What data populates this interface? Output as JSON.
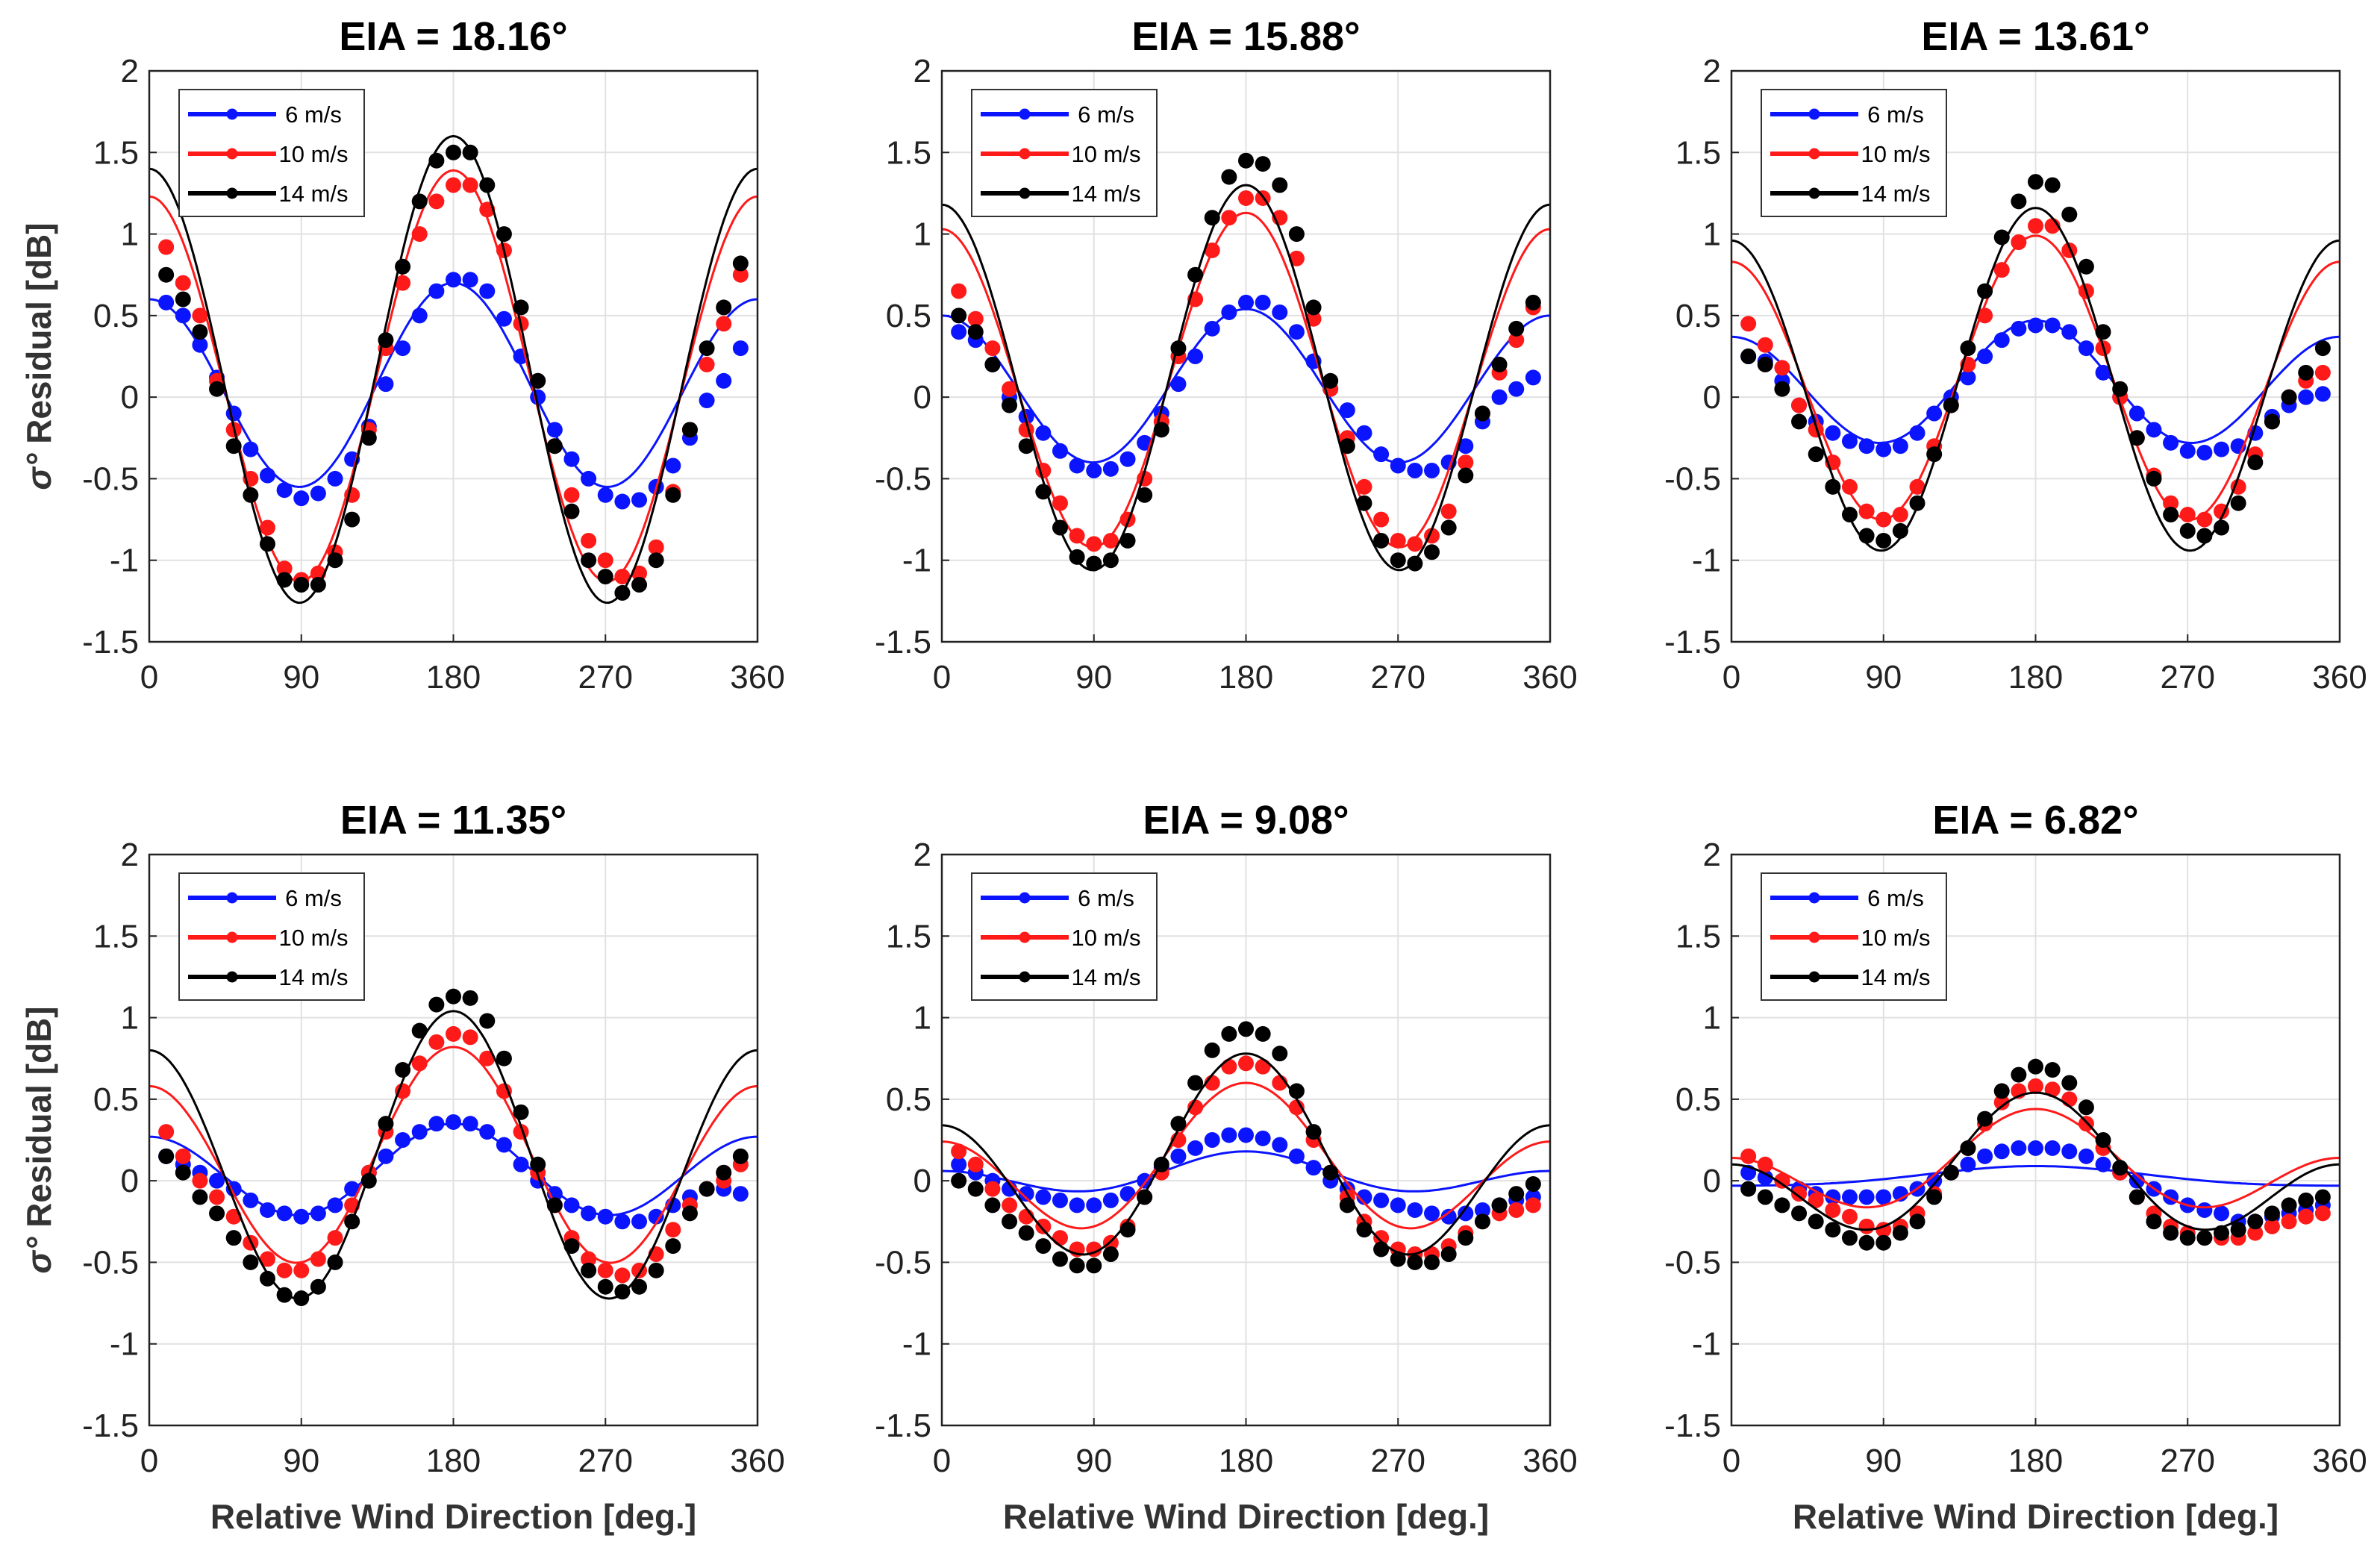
{
  "chart_data": {
    "type": "line",
    "layout": "2x3 grid",
    "ylabel_symbol": "σ°",
    "ylabel": "Residual [dB]",
    "xlabel": "Relative Wind Direction [deg.]",
    "xlim": [
      0,
      360
    ],
    "ylim": [
      -1.5,
      2
    ],
    "xticks": [
      0,
      90,
      180,
      270,
      360
    ],
    "yticks": [
      2,
      1.5,
      1,
      0.5,
      0,
      -0.5,
      -1,
      -1.5
    ],
    "grid": true,
    "legend_position": "top-left",
    "series_styles": [
      {
        "name": "6 m/s",
        "color": "#0a14ff"
      },
      {
        "name": "10 m/s",
        "color": "#ff1a1a"
      },
      {
        "name": "14 m/s",
        "color": "#000000"
      }
    ],
    "marker_x": [
      10,
      20,
      30,
      40,
      50,
      60,
      70,
      80,
      90,
      100,
      110,
      120,
      130,
      140,
      150,
      160,
      170,
      180,
      190,
      200,
      210,
      220,
      230,
      240,
      250,
      260,
      270,
      280,
      290,
      300,
      310,
      320,
      330,
      340,
      350
    ],
    "panels": [
      {
        "title": "EIA = 18.16°",
        "series": [
          {
            "name": "6 m/s",
            "fit": {
              "a0": 0.05,
              "a1": -0.05,
              "a2": 0.6
            },
            "points": [
              0.58,
              0.5,
              0.32,
              0.12,
              -0.1,
              -0.32,
              -0.48,
              -0.57,
              -0.62,
              -0.59,
              -0.5,
              -0.38,
              -0.18,
              0.08,
              0.3,
              0.5,
              0.65,
              0.72,
              0.72,
              0.65,
              0.48,
              0.25,
              0.0,
              -0.2,
              -0.38,
              -0.5,
              -0.6,
              -0.64,
              -0.63,
              -0.55,
              -0.42,
              -0.25,
              -0.02,
              0.1,
              0.3
            ]
          },
          {
            "name": "10 m/s",
            "fit": {
              "a0": 0.09,
              "a1": -0.08,
              "a2": 1.22
            },
            "points": [
              0.92,
              0.7,
              0.5,
              0.1,
              -0.2,
              -0.5,
              -0.8,
              -1.05,
              -1.12,
              -1.08,
              -0.95,
              -0.6,
              -0.2,
              0.3,
              0.7,
              1.0,
              1.2,
              1.3,
              1.3,
              1.15,
              0.9,
              0.45,
              0.1,
              -0.3,
              -0.6,
              -0.88,
              -1.0,
              -1.1,
              -1.08,
              -0.92,
              -0.58,
              -0.2,
              0.2,
              0.45,
              0.75
            ]
          },
          {
            "name": "14 m/s",
            "fit": {
              "a0": 0.12,
              "a1": -0.1,
              "a2": 1.38
            },
            "points": [
              0.75,
              0.6,
              0.4,
              0.05,
              -0.3,
              -0.6,
              -0.9,
              -1.12,
              -1.15,
              -1.15,
              -1.0,
              -0.75,
              -0.25,
              0.35,
              0.8,
              1.2,
              1.45,
              1.5,
              1.5,
              1.3,
              1.0,
              0.55,
              0.1,
              -0.3,
              -0.7,
              -1.0,
              -1.1,
              -1.2,
              -1.15,
              -1.0,
              -0.6,
              -0.2,
              0.3,
              0.55,
              0.82
            ]
          }
        ]
      },
      {
        "title": "EIA = 15.88°",
        "series": [
          {
            "name": "6 m/s",
            "fit": {
              "a0": 0.06,
              "a1": -0.02,
              "a2": 0.46
            },
            "points": [
              0.4,
              0.35,
              0.2,
              0.0,
              -0.12,
              -0.22,
              -0.33,
              -0.42,
              -0.45,
              -0.44,
              -0.38,
              -0.28,
              -0.1,
              0.08,
              0.25,
              0.42,
              0.52,
              0.58,
              0.58,
              0.52,
              0.4,
              0.22,
              0.05,
              -0.08,
              -0.22,
              -0.35,
              -0.42,
              -0.45,
              -0.45,
              -0.4,
              -0.3,
              -0.15,
              0.0,
              0.05,
              0.12
            ]
          },
          {
            "name": "10 m/s",
            "fit": {
              "a0": 0.08,
              "a1": -0.05,
              "a2": 1.0
            },
            "points": [
              0.65,
              0.48,
              0.3,
              0.05,
              -0.2,
              -0.45,
              -0.65,
              -0.85,
              -0.9,
              -0.88,
              -0.75,
              -0.5,
              -0.15,
              0.25,
              0.6,
              0.9,
              1.1,
              1.22,
              1.22,
              1.1,
              0.85,
              0.48,
              0.05,
              -0.25,
              -0.55,
              -0.75,
              -0.88,
              -0.9,
              -0.85,
              -0.7,
              -0.4,
              -0.1,
              0.15,
              0.35,
              0.55
            ]
          },
          {
            "name": "14 m/s",
            "fit": {
              "a0": 0.09,
              "a1": -0.06,
              "a2": 1.15
            },
            "points": [
              0.5,
              0.4,
              0.2,
              -0.05,
              -0.3,
              -0.58,
              -0.8,
              -0.98,
              -1.02,
              -1.0,
              -0.88,
              -0.6,
              -0.2,
              0.3,
              0.75,
              1.1,
              1.35,
              1.45,
              1.43,
              1.3,
              1.0,
              0.55,
              0.1,
              -0.3,
              -0.65,
              -0.88,
              -1.0,
              -1.02,
              -0.95,
              -0.8,
              -0.48,
              -0.1,
              0.2,
              0.42,
              0.58
            ]
          }
        ]
      },
      {
        "title": "EIA = 13.61°",
        "series": [
          {
            "name": "6 m/s",
            "fit": {
              "a0": 0.07,
              "a1": -0.05,
              "a2": 0.35
            },
            "points": [
              0.25,
              0.22,
              0.1,
              -0.05,
              -0.15,
              -0.22,
              -0.27,
              -0.3,
              -0.32,
              -0.3,
              -0.22,
              -0.1,
              0.0,
              0.12,
              0.25,
              0.35,
              0.42,
              0.44,
              0.44,
              0.4,
              0.3,
              0.15,
              0.0,
              -0.1,
              -0.2,
              -0.28,
              -0.33,
              -0.34,
              -0.32,
              -0.3,
              -0.22,
              -0.12,
              -0.05,
              0.0,
              0.02
            ]
          },
          {
            "name": "10 m/s",
            "fit": {
              "a0": 0.08,
              "a1": -0.08,
              "a2": 0.83
            },
            "points": [
              0.45,
              0.32,
              0.18,
              -0.05,
              -0.2,
              -0.4,
              -0.55,
              -0.7,
              -0.75,
              -0.72,
              -0.55,
              -0.3,
              -0.05,
              0.2,
              0.5,
              0.78,
              0.95,
              1.05,
              1.05,
              0.9,
              0.65,
              0.3,
              0.0,
              -0.25,
              -0.48,
              -0.65,
              -0.72,
              -0.75,
              -0.7,
              -0.55,
              -0.35,
              -0.15,
              0.0,
              0.1,
              0.15
            ]
          },
          {
            "name": "14 m/s",
            "fit": {
              "a0": 0.06,
              "a1": -0.1,
              "a2": 1.0
            },
            "points": [
              0.25,
              0.2,
              0.05,
              -0.15,
              -0.35,
              -0.55,
              -0.72,
              -0.85,
              -0.88,
              -0.82,
              -0.65,
              -0.35,
              -0.05,
              0.3,
              0.65,
              0.98,
              1.2,
              1.32,
              1.3,
              1.12,
              0.8,
              0.4,
              0.05,
              -0.25,
              -0.5,
              -0.72,
              -0.82,
              -0.85,
              -0.8,
              -0.65,
              -0.4,
              -0.15,
              0.0,
              0.15,
              0.3
            ]
          }
        ]
      },
      {
        "title": "EIA = 11.35°",
        "series": [
          {
            "name": "6 m/s",
            "fit": {
              "a0": 0.05,
              "a1": -0.04,
              "a2": 0.26
            },
            "points": [
              0.15,
              0.1,
              0.05,
              0.0,
              -0.05,
              -0.12,
              -0.18,
              -0.2,
              -0.22,
              -0.2,
              -0.15,
              -0.05,
              0.05,
              0.15,
              0.25,
              0.3,
              0.35,
              0.36,
              0.35,
              0.3,
              0.22,
              0.1,
              0.0,
              -0.08,
              -0.15,
              -0.2,
              -0.22,
              -0.25,
              -0.25,
              -0.22,
              -0.15,
              -0.1,
              -0.05,
              -0.05,
              -0.08
            ]
          },
          {
            "name": "10 m/s",
            "fit": {
              "a0": 0.1,
              "a1": -0.12,
              "a2": 0.6
            },
            "points": [
              0.3,
              0.15,
              0.0,
              -0.1,
              -0.22,
              -0.38,
              -0.48,
              -0.55,
              -0.55,
              -0.48,
              -0.35,
              -0.15,
              0.05,
              0.3,
              0.55,
              0.72,
              0.85,
              0.9,
              0.88,
              0.75,
              0.55,
              0.3,
              0.05,
              -0.15,
              -0.35,
              -0.48,
              -0.55,
              -0.58,
              -0.55,
              -0.45,
              -0.3,
              -0.15,
              -0.05,
              0.0,
              0.1
            ]
          },
          {
            "name": "14 m/s",
            "fit": {
              "a0": 0.1,
              "a1": -0.12,
              "a2": 0.82
            },
            "points": [
              0.15,
              0.05,
              -0.1,
              -0.2,
              -0.35,
              -0.5,
              -0.6,
              -0.7,
              -0.72,
              -0.65,
              -0.5,
              -0.25,
              0.0,
              0.35,
              0.68,
              0.92,
              1.08,
              1.13,
              1.12,
              0.98,
              0.75,
              0.42,
              0.1,
              -0.15,
              -0.4,
              -0.55,
              -0.65,
              -0.68,
              -0.65,
              -0.55,
              -0.4,
              -0.2,
              -0.05,
              0.05,
              0.15
            ]
          }
        ]
      },
      {
        "title": "EIA = 9.08°",
        "series": [
          {
            "name": "6 m/s",
            "fit": {
              "a0": 0.03,
              "a1": -0.06,
              "a2": 0.09
            },
            "points": [
              0.1,
              0.05,
              0.0,
              -0.05,
              -0.08,
              -0.1,
              -0.12,
              -0.15,
              -0.15,
              -0.12,
              -0.08,
              0.0,
              0.08,
              0.15,
              0.2,
              0.25,
              0.28,
              0.28,
              0.26,
              0.22,
              0.15,
              0.08,
              0.0,
              -0.05,
              -0.1,
              -0.12,
              -0.15,
              -0.18,
              -0.2,
              -0.22,
              -0.2,
              -0.18,
              -0.15,
              -0.12,
              -0.1
            ]
          },
          {
            "name": "10 m/s",
            "fit": {
              "a0": 0.07,
              "a1": -0.18,
              "a2": 0.35
            },
            "points": [
              0.18,
              0.1,
              -0.05,
              -0.15,
              -0.22,
              -0.28,
              -0.35,
              -0.42,
              -0.42,
              -0.38,
              -0.28,
              -0.1,
              0.05,
              0.25,
              0.45,
              0.6,
              0.7,
              0.72,
              0.7,
              0.6,
              0.45,
              0.25,
              0.05,
              -0.1,
              -0.25,
              -0.35,
              -0.42,
              -0.45,
              -0.45,
              -0.4,
              -0.32,
              -0.25,
              -0.2,
              -0.18,
              -0.15
            ]
          },
          {
            "name": "14 m/s",
            "fit": {
              "a0": 0.06,
              "a1": -0.22,
              "a2": 0.5
            },
            "points": [
              0.0,
              -0.05,
              -0.15,
              -0.25,
              -0.32,
              -0.4,
              -0.48,
              -0.52,
              -0.52,
              -0.45,
              -0.3,
              -0.1,
              0.1,
              0.35,
              0.6,
              0.8,
              0.9,
              0.93,
              0.9,
              0.78,
              0.55,
              0.3,
              0.05,
              -0.15,
              -0.3,
              -0.42,
              -0.48,
              -0.5,
              -0.5,
              -0.45,
              -0.35,
              -0.25,
              -0.15,
              -0.08,
              -0.02
            ]
          }
        ]
      },
      {
        "title": "EIA = 6.82°",
        "series": [
          {
            "name": "6 m/s",
            "fit": {
              "a0": 0.02,
              "a1": -0.06,
              "a2": 0.01
            },
            "points": [
              0.05,
              0.02,
              0.0,
              -0.05,
              -0.08,
              -0.1,
              -0.1,
              -0.1,
              -0.1,
              -0.08,
              -0.05,
              0.0,
              0.05,
              0.1,
              0.15,
              0.18,
              0.2,
              0.2,
              0.2,
              0.18,
              0.15,
              0.1,
              0.05,
              0.0,
              -0.05,
              -0.1,
              -0.15,
              -0.18,
              -0.2,
              -0.25,
              -0.25,
              -0.22,
              -0.2,
              -0.18,
              -0.15
            ]
          },
          {
            "name": "10 m/s",
            "fit": {
              "a0": 0.07,
              "a1": -0.15,
              "a2": 0.22
            },
            "points": [
              0.15,
              0.1,
              0.0,
              -0.08,
              -0.12,
              -0.18,
              -0.22,
              -0.28,
              -0.3,
              -0.28,
              -0.2,
              -0.08,
              0.05,
              0.2,
              0.35,
              0.48,
              0.55,
              0.58,
              0.56,
              0.5,
              0.35,
              0.2,
              0.05,
              -0.1,
              -0.2,
              -0.28,
              -0.32,
              -0.35,
              -0.35,
              -0.35,
              -0.32,
              -0.28,
              -0.25,
              -0.22,
              -0.2
            ]
          },
          {
            "name": "14 m/s",
            "fit": {
              "a0": 0.02,
              "a1": -0.22,
              "a2": 0.3
            },
            "points": [
              -0.05,
              -0.1,
              -0.15,
              -0.2,
              -0.25,
              -0.3,
              -0.35,
              -0.38,
              -0.38,
              -0.32,
              -0.25,
              -0.1,
              0.05,
              0.2,
              0.38,
              0.55,
              0.65,
              0.7,
              0.68,
              0.6,
              0.45,
              0.25,
              0.08,
              -0.1,
              -0.25,
              -0.32,
              -0.35,
              -0.35,
              -0.32,
              -0.3,
              -0.25,
              -0.2,
              -0.15,
              -0.12,
              -0.1
            ]
          }
        ]
      }
    ]
  }
}
